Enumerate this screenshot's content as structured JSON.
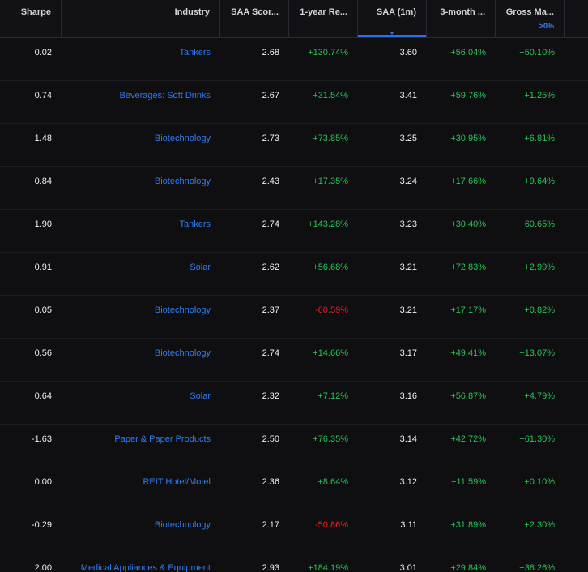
{
  "columns": [
    {
      "key": "sharpe",
      "label": "Sharpe"
    },
    {
      "key": "industry",
      "label": "Industry"
    },
    {
      "key": "saa_score",
      "label": "SAA Scor..."
    },
    {
      "key": "one_year_return",
      "label": "1-year Re..."
    },
    {
      "key": "saa_1m",
      "label": "SAA (1m)"
    },
    {
      "key": "three_month",
      "label": "3-month ..."
    },
    {
      "key": "gross_margin",
      "label": "Gross Ma...",
      "filter": ">0%"
    }
  ],
  "sort": {
    "active_column": "saa_1m"
  },
  "colors": {
    "background": "#0f0f12",
    "link": "#2f7df6",
    "positive": "#29c454",
    "negative": "#ef1f1f",
    "active_sort": "#2f6fe4"
  },
  "rows": [
    {
      "sharpe": "0.02",
      "industry": "Tankers",
      "saa_score": "2.68",
      "one_year_return": "+130.74%",
      "saa_1m": "3.60",
      "three_month": "+56.04%",
      "gross_margin": "+50.10%"
    },
    {
      "sharpe": "0.74",
      "industry": "Beverages: Soft Drinks",
      "saa_score": "2.67",
      "one_year_return": "+31.54%",
      "saa_1m": "3.41",
      "three_month": "+59.76%",
      "gross_margin": "+1.25%"
    },
    {
      "sharpe": "1.48",
      "industry": "Biotechnology",
      "saa_score": "2.73",
      "one_year_return": "+73.85%",
      "saa_1m": "3.25",
      "three_month": "+30.95%",
      "gross_margin": "+6.81%"
    },
    {
      "sharpe": "0.84",
      "industry": "Biotechnology",
      "saa_score": "2.43",
      "one_year_return": "+17.35%",
      "saa_1m": "3.24",
      "three_month": "+17.66%",
      "gross_margin": "+9.64%"
    },
    {
      "sharpe": "1.90",
      "industry": "Tankers",
      "saa_score": "2.74",
      "one_year_return": "+143.28%",
      "saa_1m": "3.23",
      "three_month": "+30.40%",
      "gross_margin": "+60.65%"
    },
    {
      "sharpe": "0.91",
      "industry": "Solar",
      "saa_score": "2.62",
      "one_year_return": "+56.68%",
      "saa_1m": "3.21",
      "three_month": "+72.83%",
      "gross_margin": "+2.99%"
    },
    {
      "sharpe": "0.05",
      "industry": "Biotechnology",
      "saa_score": "2.37",
      "one_year_return": "-60.59%",
      "saa_1m": "3.21",
      "three_month": "+17.17%",
      "gross_margin": "+0.82%"
    },
    {
      "sharpe": "0.56",
      "industry": "Biotechnology",
      "saa_score": "2.74",
      "one_year_return": "+14.66%",
      "saa_1m": "3.17",
      "three_month": "+49.41%",
      "gross_margin": "+13.07%"
    },
    {
      "sharpe": "0.64",
      "industry": "Solar",
      "saa_score": "2.32",
      "one_year_return": "+7.12%",
      "saa_1m": "3.16",
      "three_month": "+56.87%",
      "gross_margin": "+4.79%"
    },
    {
      "sharpe": "-1.63",
      "industry": "Paper & Paper Products",
      "saa_score": "2.50",
      "one_year_return": "+76.35%",
      "saa_1m": "3.14",
      "three_month": "+42.72%",
      "gross_margin": "+61.30%"
    },
    {
      "sharpe": "0.00",
      "industry": "REIT Hotel/Motel",
      "saa_score": "2.36",
      "one_year_return": "+8.64%",
      "saa_1m": "3.12",
      "three_month": "+11.59%",
      "gross_margin": "+0.10%"
    },
    {
      "sharpe": "-0.29",
      "industry": "Biotechnology",
      "saa_score": "2.17",
      "one_year_return": "-50.86%",
      "saa_1m": "3.11",
      "three_month": "+31.89%",
      "gross_margin": "+2.30%"
    },
    {
      "sharpe": "2.00",
      "industry": "Medical Appliances & Equipment",
      "saa_score": "2.93",
      "one_year_return": "+184.19%",
      "saa_1m": "3.01",
      "three_month": "+29.84%",
      "gross_margin": "+38.26%"
    }
  ]
}
